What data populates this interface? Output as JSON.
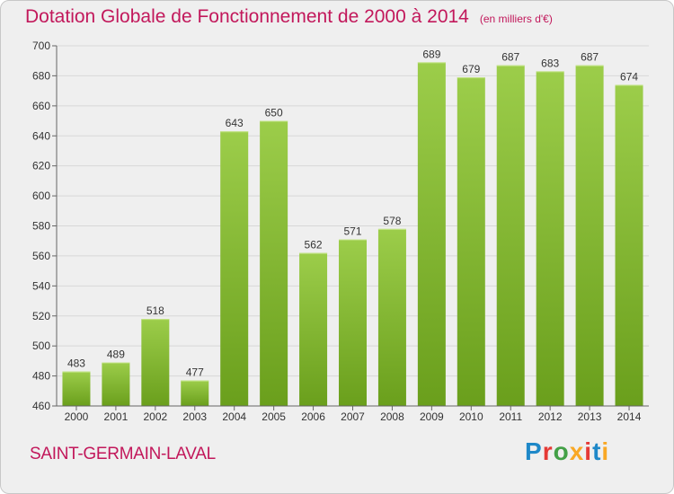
{
  "title": "Dotation Globale de Fonctionnement de 2000 à 2014",
  "subtitle": "(en milliers d'€)",
  "commune": "SAINT-GERMAIN-LAVAL",
  "brand": {
    "name": "Proxiti",
    "letter_colors": [
      "#1e88c8",
      "#e53935",
      "#43a047",
      "#f9a825",
      "#e53935",
      "#1e88c8",
      "#f9a825"
    ]
  },
  "colors": {
    "title": "#c2185b",
    "bar_light": "#9ccd4a",
    "bar_dark": "#6a9f1c",
    "background": "#efefef"
  },
  "chart_data": {
    "type": "bar",
    "categories": [
      "2000",
      "2001",
      "2002",
      "2003",
      "2004",
      "2005",
      "2006",
      "2007",
      "2008",
      "2009",
      "2010",
      "2011",
      "2012",
      "2013",
      "2014"
    ],
    "values": [
      483,
      489,
      518,
      477,
      643,
      650,
      562,
      571,
      578,
      689,
      679,
      687,
      683,
      687,
      674
    ],
    "ylim": [
      460,
      700
    ],
    "yticks": [
      460,
      480,
      500,
      520,
      540,
      560,
      580,
      600,
      620,
      640,
      660,
      680,
      700
    ],
    "grid": true,
    "data_labels": true
  }
}
